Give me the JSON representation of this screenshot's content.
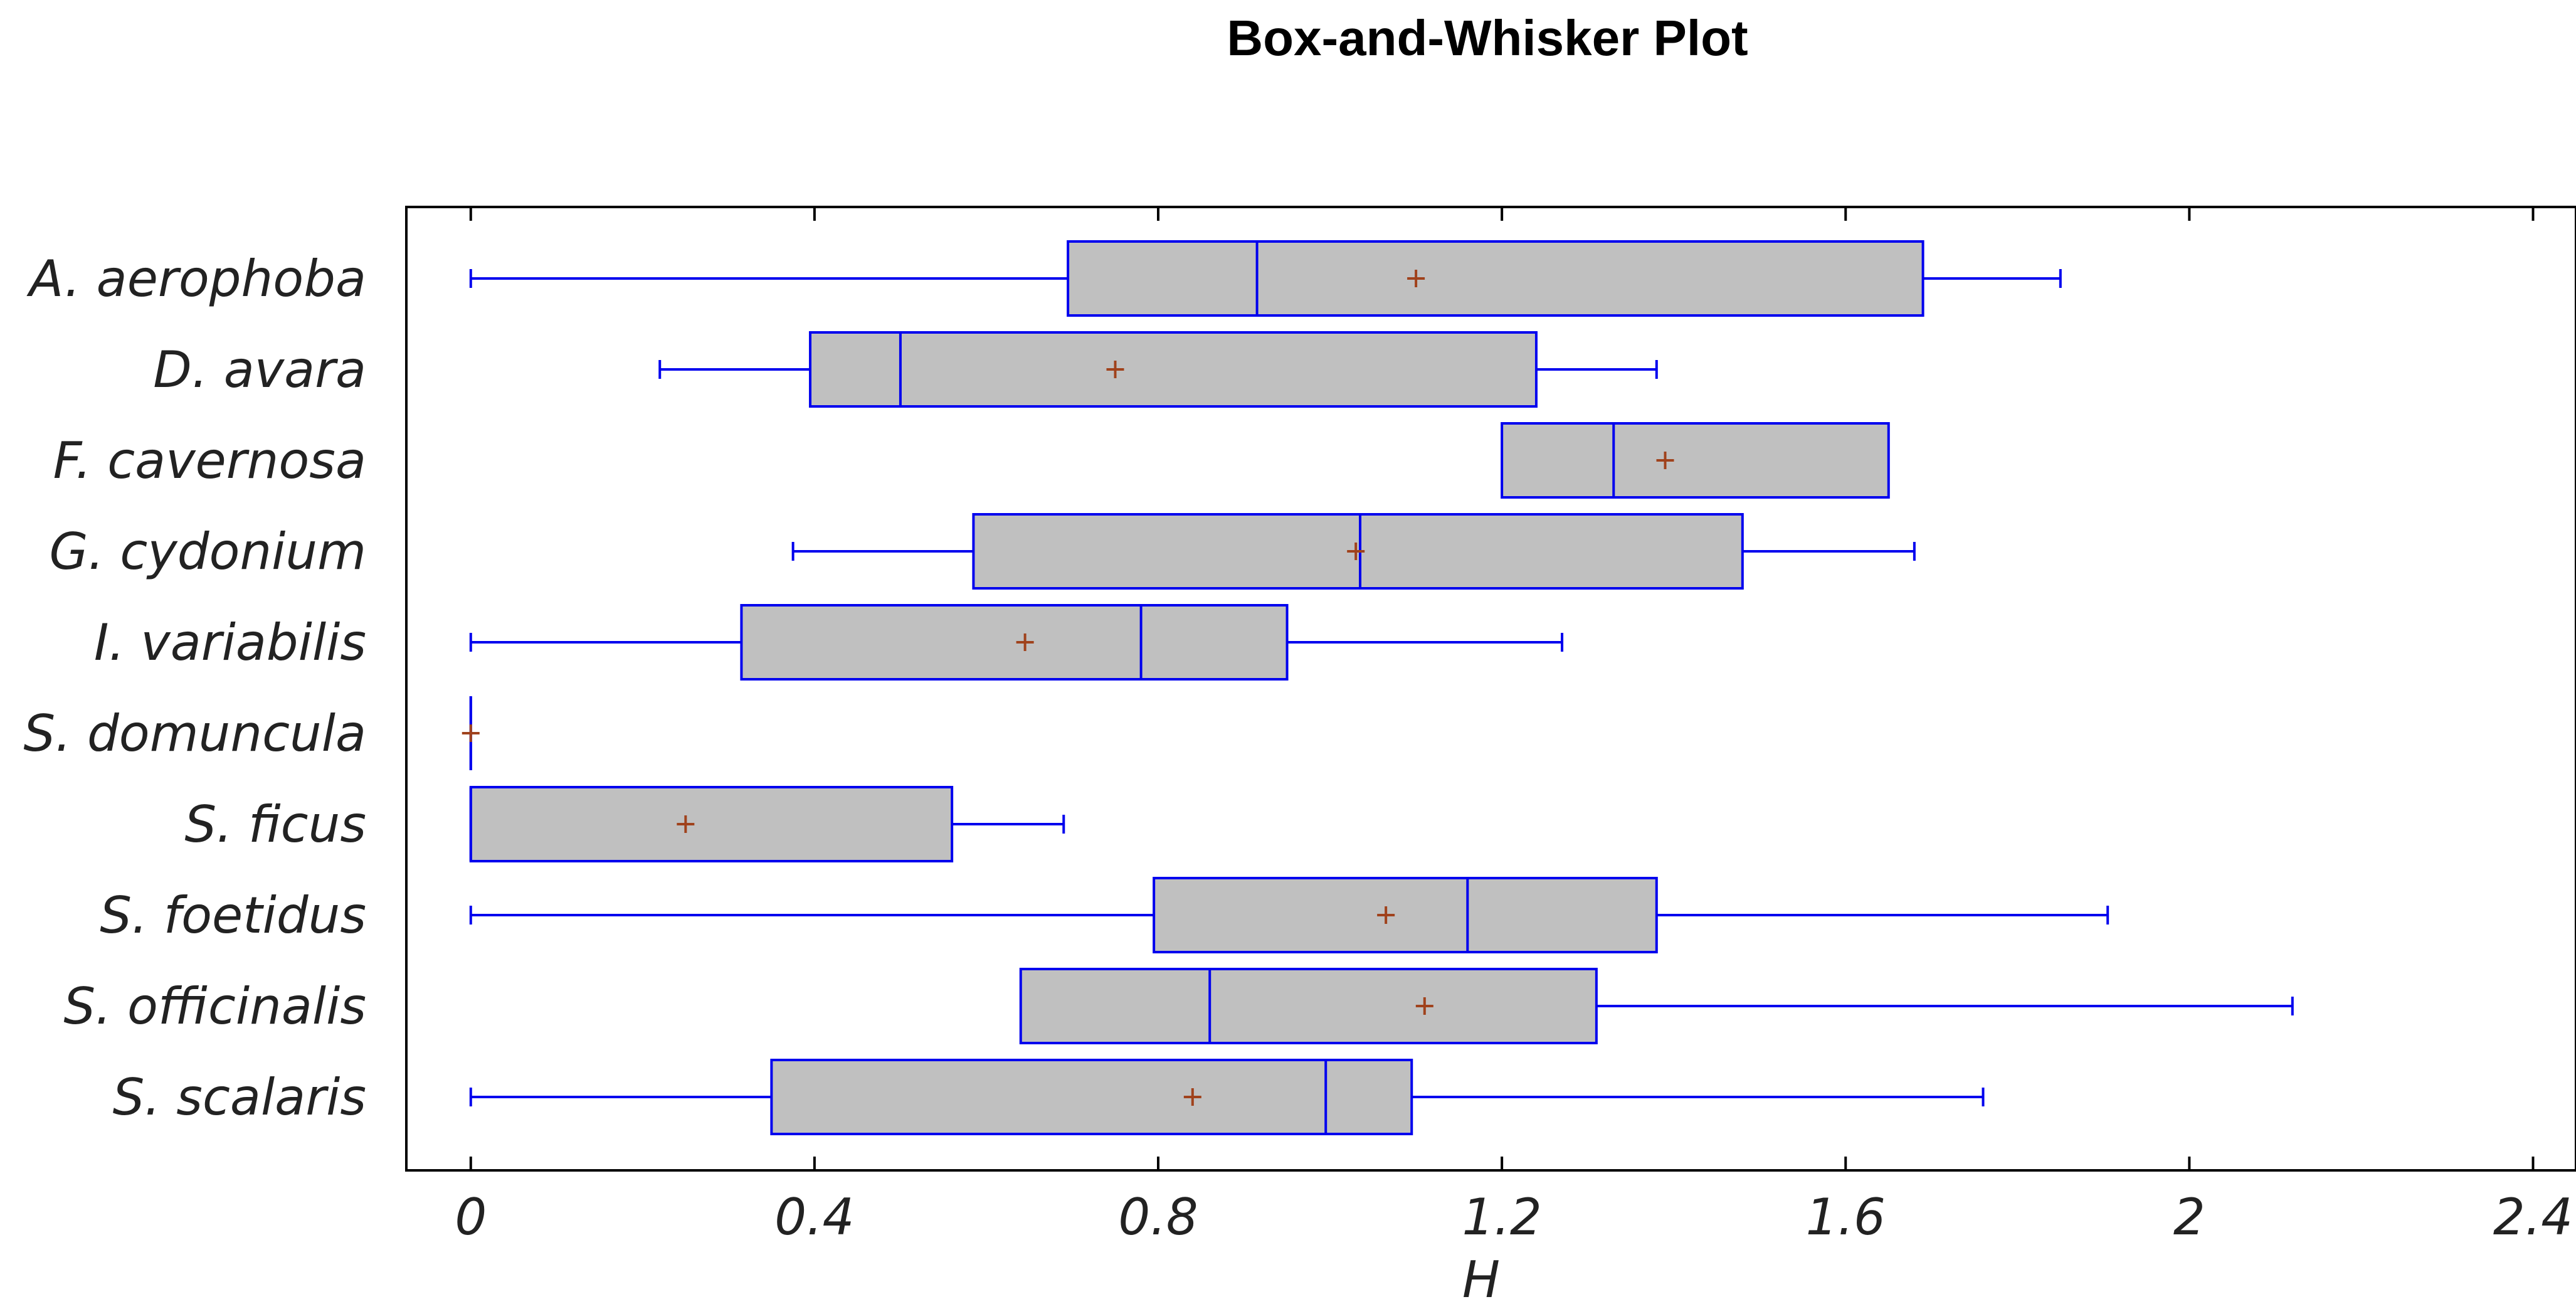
{
  "chart_data": {
    "type": "box",
    "title": "Box-and-Whisker Plot",
    "xlabel": "H",
    "ylabel": "",
    "xlim": [
      -0.075,
      2.45
    ],
    "xticks": [
      0,
      0.4,
      0.8,
      1.2,
      1.6,
      2,
      2.4
    ],
    "xtick_labels": [
      "0",
      "0.4",
      "0.8",
      "1.2",
      "1.6",
      "2",
      "2.4"
    ],
    "grid": false,
    "legend": "none",
    "colors": {
      "box_fill": "#c0c0c0",
      "box_stroke": "#0000ee",
      "mean_marker": "#a0421c",
      "axis": "#000000"
    },
    "categories": [
      "A. aerophoba",
      "D. avara",
      "F. cavernosa",
      "G. cydonium",
      "I. variabilis",
      "S. domuncula",
      "S. ficus",
      "S. foetidus",
      "S. officinalis",
      "S. scalaris"
    ],
    "boxes": [
      {
        "min": 0.0,
        "q1": 0.695,
        "median": 0.915,
        "q3": 1.69,
        "max": 1.85,
        "mean": 1.1
      },
      {
        "min": 0.22,
        "q1": 0.395,
        "median": 0.5,
        "q3": 1.24,
        "max": 1.38,
        "mean": 0.75
      },
      {
        "min": 1.2,
        "q1": 1.2,
        "median": 1.33,
        "q3": 1.65,
        "max": 1.65,
        "mean": 1.39
      },
      {
        "min": 0.375,
        "q1": 0.585,
        "median": 1.035,
        "q3": 1.48,
        "max": 1.68,
        "mean": 1.03
      },
      {
        "min": 0.0,
        "q1": 0.315,
        "median": 0.78,
        "q3": 0.95,
        "max": 1.27,
        "mean": 0.645
      },
      {
        "min": 0.0,
        "q1": 0.0,
        "median": 0.0,
        "q3": 0.0,
        "max": 0.0,
        "mean": 0.0
      },
      {
        "min": 0.0,
        "q1": 0.0,
        "median": 0.0,
        "q3": 0.56,
        "max": 0.69,
        "mean": 0.25
      },
      {
        "min": 0.0,
        "q1": 0.795,
        "median": 1.16,
        "q3": 1.38,
        "max": 1.905,
        "mean": 1.065
      },
      {
        "min": 0.64,
        "q1": 0.64,
        "median": 0.86,
        "q3": 1.31,
        "max": 2.12,
        "mean": 1.11
      },
      {
        "min": 0.0,
        "q1": 0.35,
        "median": 0.995,
        "q3": 1.095,
        "max": 1.76,
        "mean": 0.84
      }
    ]
  }
}
